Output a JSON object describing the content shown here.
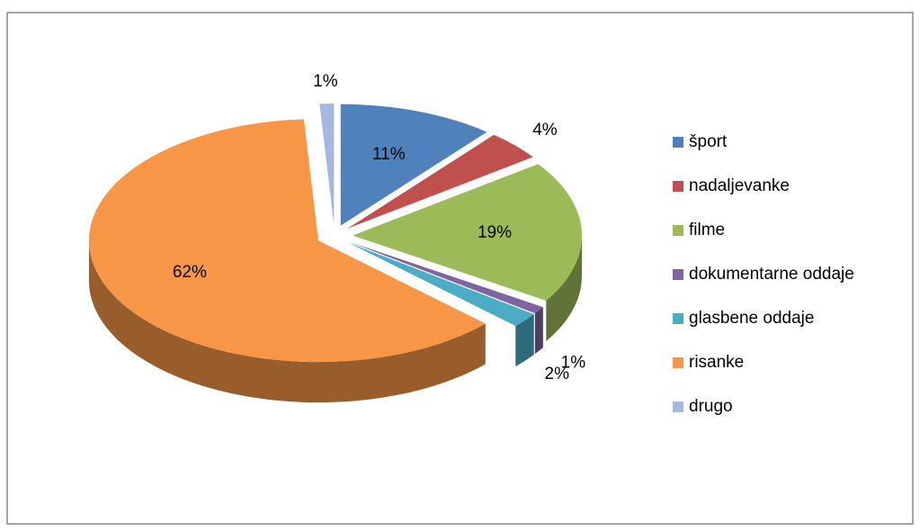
{
  "chart_data": {
    "type": "pie",
    "categories": [
      "šport",
      "nadaljevanke",
      "filme",
      "dokumentarne oddaje",
      "glasbene oddaje",
      "risanke",
      "drugo"
    ],
    "values": [
      11,
      4,
      19,
      1,
      2,
      62,
      1
    ],
    "value_labels": [
      "11%",
      "4%",
      "19%",
      "1%",
      "2%",
      "62%",
      "1%"
    ],
    "colors": [
      "#4f81bd",
      "#c0504d",
      "#9bbb59",
      "#8064a2",
      "#4bacc6",
      "#f79646",
      "#a5b8e0"
    ],
    "legend": "right"
  }
}
